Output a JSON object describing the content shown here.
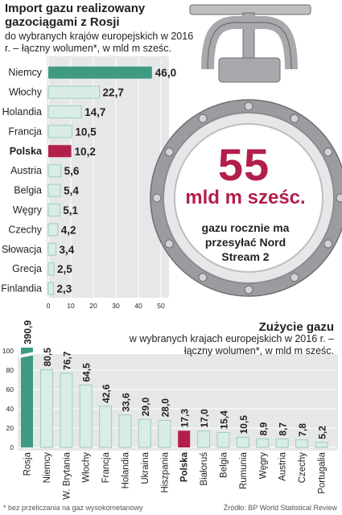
{
  "top": {
    "title": "Import gazu realizowany gazociągami z Rosji",
    "subtitle": "do wybranych krajów europejskich w 2016 r. – łączny wolumen*, w mld m sześc."
  },
  "gauge": {
    "value": "55",
    "unit": "mld m sześc.",
    "text": "gazu rocznie ma przesyłać Nord Stream 2"
  },
  "bottom": {
    "title": "Zużycie gazu",
    "subtitle": "w wybranych krajach europejskich w 2016 r. – łączny wolumen*, w mld m sześc."
  },
  "footnote": "* bez przeliczania na gaz wysokometanowy",
  "source": "Źródło: BP World Statistical Review",
  "colors": {
    "green": "#3f9a83",
    "light_green": "#d9ece6",
    "crimson": "#b21f4a",
    "panel": "#e6e7e8"
  },
  "chart_data": [
    {
      "type": "bar",
      "orientation": "horizontal",
      "categories": [
        "Niemcy",
        "Włochy",
        "Holandia",
        "Francja",
        "Polska",
        "Austria",
        "Belgia",
        "Węgry",
        "Czechy",
        "Słowacja",
        "Grecja",
        "Finlandia"
      ],
      "values": [
        46.0,
        22.7,
        14.7,
        10.5,
        10.2,
        5.6,
        5.4,
        5.1,
        4.2,
        3.4,
        2.5,
        2.3
      ],
      "value_labels": [
        "46,0",
        "22,7",
        "14,7",
        "10,5",
        "10,2",
        "5,6",
        "5,4",
        "5,1",
        "4,2",
        "3,4",
        "2,5",
        "2,3"
      ],
      "highlight": [
        "Niemcy",
        "Polska"
      ],
      "xlim": [
        0,
        50
      ],
      "xticks": [
        0,
        10,
        20,
        30,
        40,
        50
      ],
      "grid": true
    },
    {
      "type": "bar",
      "orientation": "vertical",
      "categories": [
        "Rosja",
        "Niemcy",
        "W. Brytania",
        "Włochy",
        "Francja",
        "Holandia",
        "Ukraina",
        "Hiszpania",
        "Polska",
        "Białoruś",
        "Belgia",
        "Rumunia",
        "Węgry",
        "Austria",
        "Czechy",
        "Portugalia"
      ],
      "values": [
        390.9,
        80.5,
        76.7,
        64.5,
        42.6,
        33.6,
        29.0,
        28.0,
        17.3,
        17.0,
        15.4,
        10.5,
        8.9,
        8.7,
        7.8,
        5.2
      ],
      "value_labels": [
        "390,9",
        "80,5",
        "76,7",
        "64,5",
        "42,6",
        "33,6",
        "29,0",
        "28,0",
        "17,3",
        "17,0",
        "15,4",
        "10,5",
        "8,9",
        "8,7",
        "7,8",
        "5,2"
      ],
      "highlight": [
        "Rosja",
        "Polska"
      ],
      "ylim": [
        0,
        100
      ],
      "yticks": [
        0,
        20,
        40,
        60,
        80,
        100
      ],
      "axis_break": true,
      "grid": true
    }
  ]
}
